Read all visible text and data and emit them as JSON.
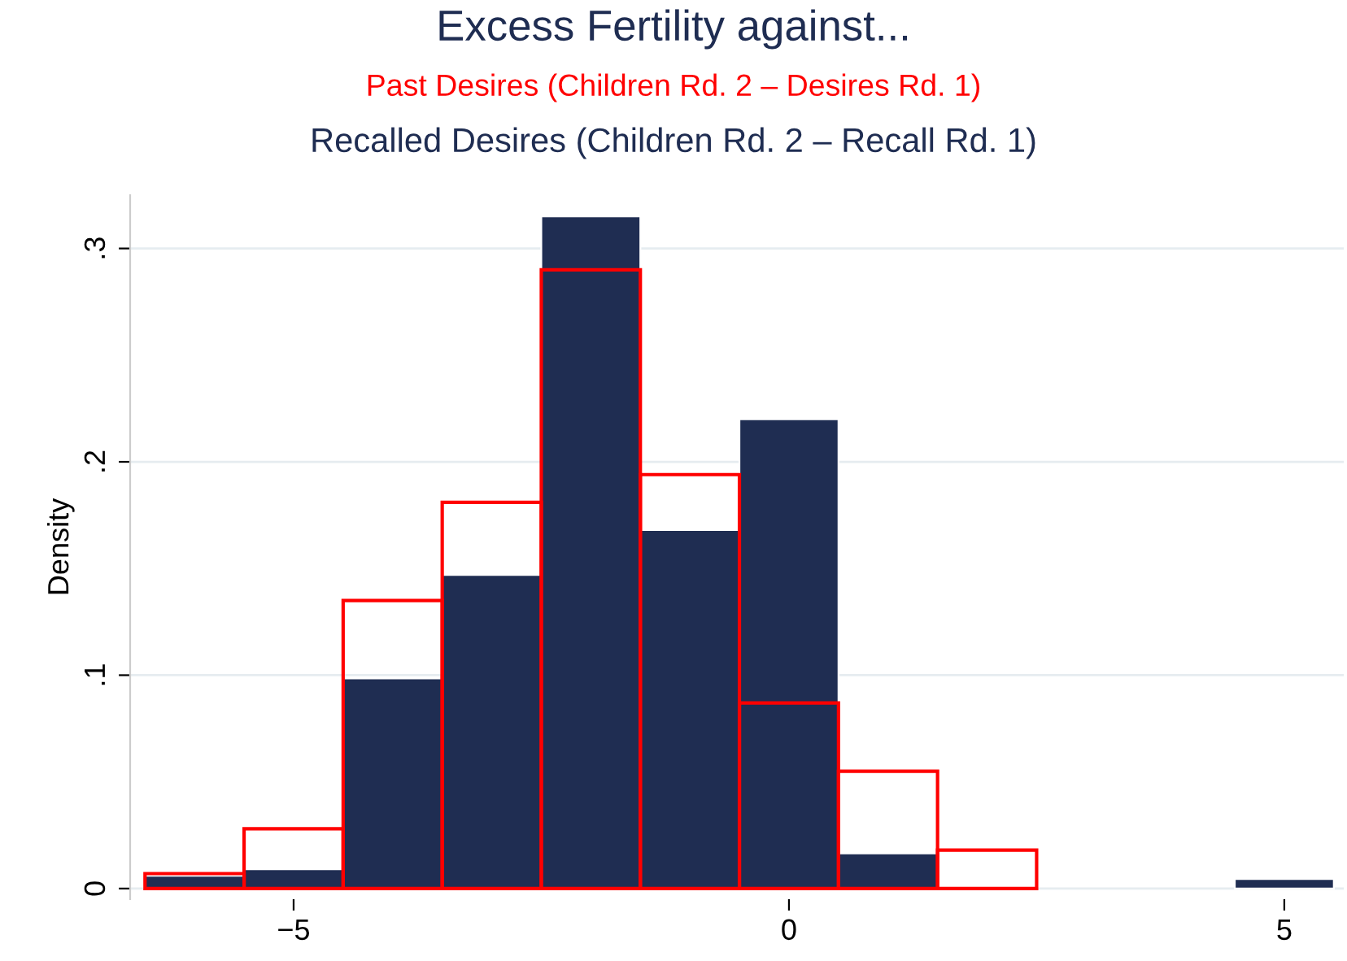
{
  "chart_data": {
    "type": "histogram",
    "title": "Excess Fertility against...",
    "ylabel": "Density",
    "bins": [
      -6.5,
      -5.5,
      -4.5,
      -3.5,
      -2.5,
      -1.5,
      -0.5,
      0.5,
      1.5,
      2.5,
      3.5,
      4.5,
      5.5
    ],
    "series": [
      {
        "name": "Recalled Desires (Children Rd. 2 – Recall Rd. 1)",
        "color": "#1f2d52",
        "values": [
          0.006,
          0.009,
          0.0985,
          0.147,
          0.315,
          0.168,
          0.22,
          0.0165,
          null,
          null,
          null,
          0.0045
        ]
      },
      {
        "name": "Past Desires (Children Rd. 2 – Desires Rd. 1)",
        "color": "#ff0000",
        "values": [
          0.007,
          0.028,
          0.135,
          0.181,
          0.29,
          0.194,
          0.087,
          0.055,
          0.018,
          null,
          null,
          null
        ]
      }
    ],
    "xlim": [
      -6.65,
      5.6
    ],
    "xticks": [
      {
        "value": -5,
        "label": "−5"
      },
      0,
      5
    ],
    "ylim": [
      -0.005,
      0.325
    ],
    "yticks": [
      0,
      {
        "value": 0.1,
        "label": ".1"
      },
      {
        "value": 0.2,
        "label": ".2"
      },
      {
        "value": 0.3,
        "label": ".3"
      }
    ],
    "grid": "y"
  }
}
